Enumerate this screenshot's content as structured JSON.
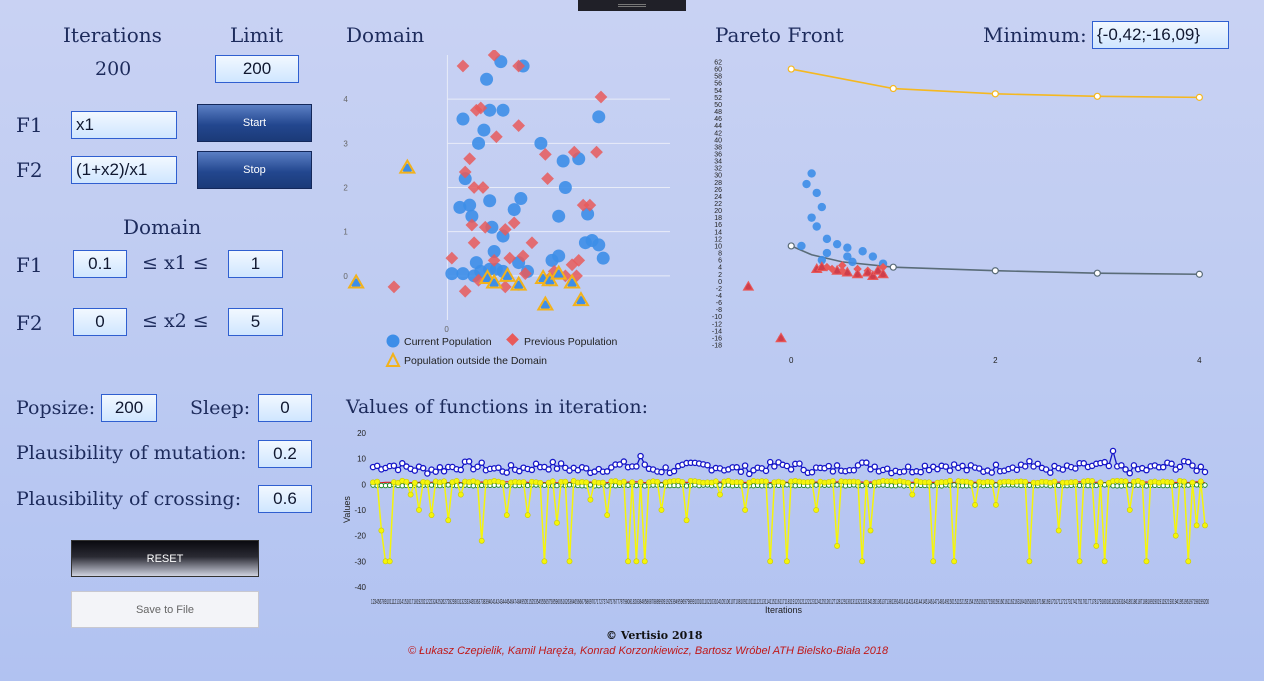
{
  "left_panel": {
    "iterations_label": "Iterations",
    "iterations_value": "200",
    "limit_label": "Limit",
    "limit_value": "200",
    "f1_label": "F1",
    "f1_value": "x1",
    "f2_label": "F2",
    "f2_value": "(1+x2)/x1",
    "start_label": "Start",
    "stop_label": "Stop",
    "domain_label": "Domain",
    "f1_domain_label": "F1",
    "f1_min": "0.1",
    "f1_var": "≤ x1 ≤",
    "f1_max": "1",
    "f2_domain_label": "F2",
    "f2_min": "0",
    "f2_var": "≤ x2 ≤",
    "f2_max": "5",
    "popsize_label": "Popsize:",
    "popsize_value": "200",
    "sleep_label": "Sleep:",
    "sleep_value": "0",
    "mutation_label": "Plausibility of mutation:",
    "mutation_value": "0.2",
    "crossing_label": "Plausibility of crossing:",
    "crossing_value": "0.6",
    "reset_label": "RESET",
    "save_label": "Save to File"
  },
  "domain_chart": {
    "title": "Domain",
    "legend": [
      "Current Population",
      "Previous Population",
      "Population outside the Domain"
    ],
    "y_ticks": [
      "4",
      "3",
      "2",
      "1",
      "0"
    ],
    "x_tick": "0"
  },
  "pareto_chart": {
    "title": "Pareto Front",
    "minimum_label": "Minimum:",
    "minimum_value": "{-0,42;-16,09}",
    "x_ticks": [
      "0",
      "2",
      "4"
    ]
  },
  "values_chart": {
    "title": "Values of functions in iteration:",
    "ylabel": "Values",
    "xlabel": "Iterations",
    "y_ticks": [
      "20",
      "10",
      "0",
      "-10",
      "-20",
      "-30",
      "-40"
    ]
  },
  "footer": {
    "copyright": "© Vertisio 2018",
    "authors": "© Łukasz Czepielik, Kamil Haręża, Konrad Korzonkiewicz, Bartosz Wróbel ATH Bielsko-Biała 2018"
  },
  "colors": {
    "current": "#3d8ee8",
    "previous": "#e85a5a",
    "outside": "#f2b21c",
    "front_upper": "#f5b820",
    "front_lower": "#5a6c78",
    "series_f1": "#1414c8",
    "series_f2": "#f5f50a",
    "series_red": "#e02020",
    "series_green": "#1a8a1a"
  },
  "chart_data": [
    {
      "type": "scatter",
      "name": "Domain",
      "xlim": [
        -2.3,
        5.0
      ],
      "ylim": [
        -1.0,
        5.0
      ],
      "series": [
        {
          "name": "Current Population",
          "points": [
            [
              0.88,
              4.45
            ],
            [
              1.2,
              4.85
            ],
            [
              1.7,
              4.75
            ],
            [
              0.95,
              3.75
            ],
            [
              1.25,
              3.75
            ],
            [
              0.7,
              3.0
            ],
            [
              0.82,
              3.3
            ],
            [
              2.1,
              3.0
            ],
            [
              2.6,
              2.6
            ],
            [
              2.95,
              2.65
            ],
            [
              2.65,
              2.0
            ],
            [
              3.4,
              3.6
            ],
            [
              0.35,
              3.55
            ],
            [
              0.4,
              2.2
            ],
            [
              0.95,
              1.7
            ],
            [
              1.65,
              1.75
            ],
            [
              1.5,
              1.5
            ],
            [
              2.5,
              1.35
            ],
            [
              3.15,
              1.4
            ],
            [
              0.5,
              1.6
            ],
            [
              0.28,
              1.55
            ],
            [
              0.55,
              1.35
            ],
            [
              1.0,
              1.1
            ],
            [
              1.25,
              0.9
            ],
            [
              1.05,
              0.55
            ],
            [
              3.1,
              0.75
            ],
            [
              3.25,
              0.8
            ],
            [
              3.4,
              0.7
            ],
            [
              3.5,
              0.4
            ],
            [
              0.65,
              0.3
            ],
            [
              0.95,
              0.15
            ],
            [
              1.1,
              0.15
            ],
            [
              1.25,
              0.1
            ],
            [
              0.1,
              0.05
            ],
            [
              0.35,
              0.05
            ],
            [
              0.6,
              0.0
            ],
            [
              0.75,
              0.1
            ],
            [
              1.6,
              0.3
            ],
            [
              1.8,
              0.1
            ],
            [
              2.35,
              0.35
            ],
            [
              2.5,
              0.45
            ]
          ]
        },
        {
          "name": "Previous Population",
          "points": [
            [
              0.35,
              4.75
            ],
            [
              1.05,
              5.0
            ],
            [
              1.6,
              4.75
            ],
            [
              3.45,
              4.05
            ],
            [
              0.65,
              3.75
            ],
            [
              0.75,
              3.8
            ],
            [
              1.1,
              3.15
            ],
            [
              1.6,
              3.4
            ],
            [
              2.2,
              2.75
            ],
            [
              2.85,
              2.8
            ],
            [
              3.35,
              2.8
            ],
            [
              0.5,
              2.65
            ],
            [
              0.4,
              2.35
            ],
            [
              0.6,
              2.0
            ],
            [
              0.8,
              2.0
            ],
            [
              2.25,
              2.2
            ],
            [
              3.05,
              1.6
            ],
            [
              3.2,
              1.6
            ],
            [
              0.55,
              1.15
            ],
            [
              0.85,
              1.1
            ],
            [
              1.3,
              1.05
            ],
            [
              1.5,
              1.2
            ],
            [
              1.9,
              0.75
            ],
            [
              0.6,
              0.75
            ],
            [
              2.4,
              0.1
            ],
            [
              2.65,
              0.0
            ],
            [
              2.8,
              0.25
            ],
            [
              2.95,
              0.35
            ],
            [
              1.05,
              0.35
            ],
            [
              1.4,
              0.4
            ],
            [
              1.7,
              0.45
            ],
            [
              0.4,
              -0.35
            ],
            [
              0.7,
              -0.1
            ],
            [
              1.3,
              -0.25
            ],
            [
              1.75,
              0.05
            ],
            [
              2.3,
              -0.05
            ],
            [
              2.9,
              0.0
            ],
            [
              -1.2,
              -0.25
            ],
            [
              0.1,
              0.4
            ]
          ]
        },
        {
          "name": "Population outside the Domain",
          "points": [
            [
              -2.05,
              -0.15
            ],
            [
              -0.9,
              2.45
            ],
            [
              0.9,
              -0.05
            ],
            [
              1.05,
              -0.15
            ],
            [
              1.35,
              0.0
            ],
            [
              1.6,
              -0.2
            ],
            [
              2.15,
              -0.05
            ],
            [
              2.3,
              -0.1
            ],
            [
              2.5,
              0.05
            ],
            [
              2.8,
              -0.15
            ],
            [
              3.0,
              -0.55
            ],
            [
              2.2,
              -0.65
            ]
          ]
        }
      ]
    },
    {
      "type": "scatter",
      "name": "Pareto Front",
      "xlim": [
        -0.6,
        4.3
      ],
      "ylim": [
        -18,
        62
      ],
      "series": [
        {
          "name": "front_upper",
          "points": [
            [
              0.0,
              60.0
            ],
            [
              1.0,
              54.5
            ],
            [
              2.0,
              53.0
            ],
            [
              3.0,
              52.3
            ],
            [
              4.0,
              52.0
            ]
          ]
        },
        {
          "name": "front_lower",
          "points": [
            [
              0.0,
              10.0
            ],
            [
              0.2,
              7.5
            ],
            [
              0.5,
              5.5
            ],
            [
              1.0,
              4.0
            ],
            [
              2.0,
              3.0
            ],
            [
              3.0,
              2.3
            ],
            [
              4.0,
              2.0
            ]
          ]
        },
        {
          "name": "current",
          "points": [
            [
              0.2,
              30.5
            ],
            [
              0.15,
              27.5
            ],
            [
              0.25,
              25.0
            ],
            [
              0.3,
              21.0
            ],
            [
              0.2,
              18.0
            ],
            [
              0.25,
              15.5
            ],
            [
              0.1,
              10.0
            ],
            [
              0.35,
              12.0
            ],
            [
              0.55,
              9.5
            ],
            [
              0.45,
              10.5
            ],
            [
              0.7,
              8.5
            ],
            [
              0.35,
              8.0
            ],
            [
              0.55,
              7.0
            ],
            [
              0.8,
              7.0
            ],
            [
              0.3,
              6.0
            ],
            [
              0.6,
              5.5
            ],
            [
              0.9,
              5.0
            ]
          ]
        },
        {
          "name": "previous",
          "points": [
            [
              0.35,
              4.0
            ],
            [
              0.4,
              3.5
            ],
            [
              0.5,
              4.5
            ],
            [
              0.65,
              3.5
            ],
            [
              0.75,
              3.0
            ],
            [
              0.9,
              4.0
            ],
            [
              0.5,
              3.0
            ]
          ]
        },
        {
          "name": "outside",
          "points": [
            [
              0.25,
              3.5
            ],
            [
              0.3,
              4.0
            ],
            [
              0.45,
              3.0
            ],
            [
              0.55,
              2.5
            ],
            [
              0.65,
              2.0
            ],
            [
              0.75,
              2.5
            ],
            [
              0.8,
              1.5
            ],
            [
              0.85,
              3.0
            ],
            [
              0.9,
              2.0
            ],
            [
              -0.42,
              -1.5
            ],
            [
              -0.1,
              -16.09
            ]
          ]
        }
      ]
    },
    {
      "type": "line",
      "name": "Values of functions in iteration",
      "xlabel": "Iterations",
      "ylabel": "Values",
      "ylim": [
        -40,
        20
      ],
      "x_range": [
        1,
        200
      ],
      "series": [
        {
          "name": "f1_blue",
          "mean": 6.5,
          "spread": 2.5,
          "peaks": [
            [
              65,
              11
            ],
            [
              178,
              13
            ],
            [
              158,
              9
            ],
            [
              195,
              9
            ]
          ]
        },
        {
          "name": "f2_yellow",
          "baseline": 1.0,
          "dips": [
            [
              3,
              -18
            ],
            [
              4,
              -30
            ],
            [
              5,
              -30
            ],
            [
              10,
              -4
            ],
            [
              12,
              -10
            ],
            [
              15,
              -12
            ],
            [
              19,
              -14
            ],
            [
              22,
              -4
            ],
            [
              27,
              -22
            ],
            [
              33,
              -12
            ],
            [
              38,
              -12
            ],
            [
              42,
              -30
            ],
            [
              45,
              -15
            ],
            [
              48,
              -30
            ],
            [
              53,
              -6
            ],
            [
              57,
              -12
            ],
            [
              62,
              -30
            ],
            [
              64,
              -30
            ],
            [
              66,
              -30
            ],
            [
              70,
              -10
            ],
            [
              76,
              -14
            ],
            [
              84,
              -4
            ],
            [
              90,
              -10
            ],
            [
              96,
              -30
            ],
            [
              100,
              -30
            ],
            [
              107,
              -10
            ],
            [
              112,
              -24
            ],
            [
              118,
              -30
            ],
            [
              120,
              -18
            ],
            [
              130,
              -4
            ],
            [
              135,
              -30
            ],
            [
              140,
              -30
            ],
            [
              145,
              -8
            ],
            [
              150,
              -8
            ],
            [
              158,
              -30
            ],
            [
              165,
              -18
            ],
            [
              170,
              -30
            ],
            [
              174,
              -24
            ],
            [
              176,
              -30
            ],
            [
              182,
              -10
            ],
            [
              186,
              -30
            ],
            [
              193,
              -20
            ],
            [
              196,
              -30
            ],
            [
              198,
              -16
            ],
            [
              200,
              -16
            ]
          ]
        },
        {
          "name": "red",
          "value": 0.8
        },
        {
          "name": "green",
          "value": -0.4
        }
      ]
    }
  ]
}
